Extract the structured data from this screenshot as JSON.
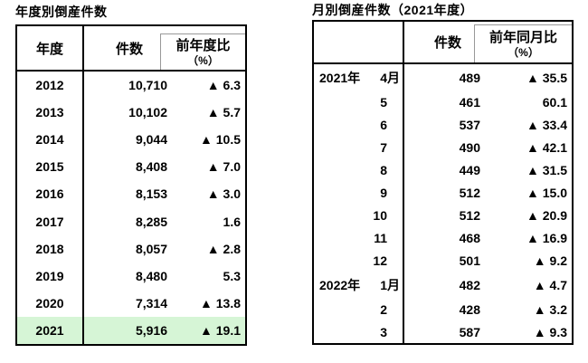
{
  "annual": {
    "title": "年度別倒産件数",
    "headers": {
      "year": "年度",
      "count": "件数",
      "ratio_line1": "前年度比",
      "ratio_line2": "（%）"
    },
    "highlight_color": "#d6f5d6",
    "rows": [
      {
        "year": "2012",
        "count": "10,710",
        "pct": "▲ 6.3",
        "highlight": false
      },
      {
        "year": "2013",
        "count": "10,102",
        "pct": "▲ 5.7",
        "highlight": false
      },
      {
        "year": "2014",
        "count": "9,044",
        "pct": "▲ 10.5",
        "highlight": false
      },
      {
        "year": "2015",
        "count": "8,408",
        "pct": "▲ 7.0",
        "highlight": false
      },
      {
        "year": "2016",
        "count": "8,153",
        "pct": "▲ 3.0",
        "highlight": false
      },
      {
        "year": "2017",
        "count": "8,285",
        "pct": "1.6",
        "highlight": false
      },
      {
        "year": "2018",
        "count": "8,057",
        "pct": "▲ 2.8",
        "highlight": false
      },
      {
        "year": "2019",
        "count": "8,480",
        "pct": "5.3",
        "highlight": false
      },
      {
        "year": "2020",
        "count": "7,314",
        "pct": "▲ 13.8",
        "highlight": false
      },
      {
        "year": "2021",
        "count": "5,916",
        "pct": "▲ 19.1",
        "highlight": true
      }
    ]
  },
  "monthly": {
    "title": "月別倒産件数（2021年度）",
    "headers": {
      "count": "件数",
      "ratio_line1": "前年同月比",
      "ratio_line2": "（%）"
    },
    "rows": [
      {
        "year": "2021年",
        "month": "4",
        "suffix": "月",
        "count": "489",
        "pct": "▲ 35.5"
      },
      {
        "year": "",
        "month": "5",
        "suffix": "",
        "count": "461",
        "pct": "60.1"
      },
      {
        "year": "",
        "month": "6",
        "suffix": "",
        "count": "537",
        "pct": "▲ 33.4"
      },
      {
        "year": "",
        "month": "7",
        "suffix": "",
        "count": "490",
        "pct": "▲ 42.1"
      },
      {
        "year": "",
        "month": "8",
        "suffix": "",
        "count": "449",
        "pct": "▲ 31.5"
      },
      {
        "year": "",
        "month": "9",
        "suffix": "",
        "count": "512",
        "pct": "▲ 15.0"
      },
      {
        "year": "",
        "month": "10",
        "suffix": "",
        "count": "512",
        "pct": "▲ 20.9"
      },
      {
        "year": "",
        "month": "11",
        "suffix": "",
        "count": "468",
        "pct": "▲ 16.9"
      },
      {
        "year": "",
        "month": "12",
        "suffix": "",
        "count": "501",
        "pct": "▲ 9.2"
      },
      {
        "year": "2022年",
        "month": "1",
        "suffix": "月",
        "count": "482",
        "pct": "▲ 4.7"
      },
      {
        "year": "",
        "month": "2",
        "suffix": "",
        "count": "428",
        "pct": "▲ 3.2"
      },
      {
        "year": "",
        "month": "3",
        "suffix": "",
        "count": "587",
        "pct": "▲ 9.3"
      }
    ]
  }
}
